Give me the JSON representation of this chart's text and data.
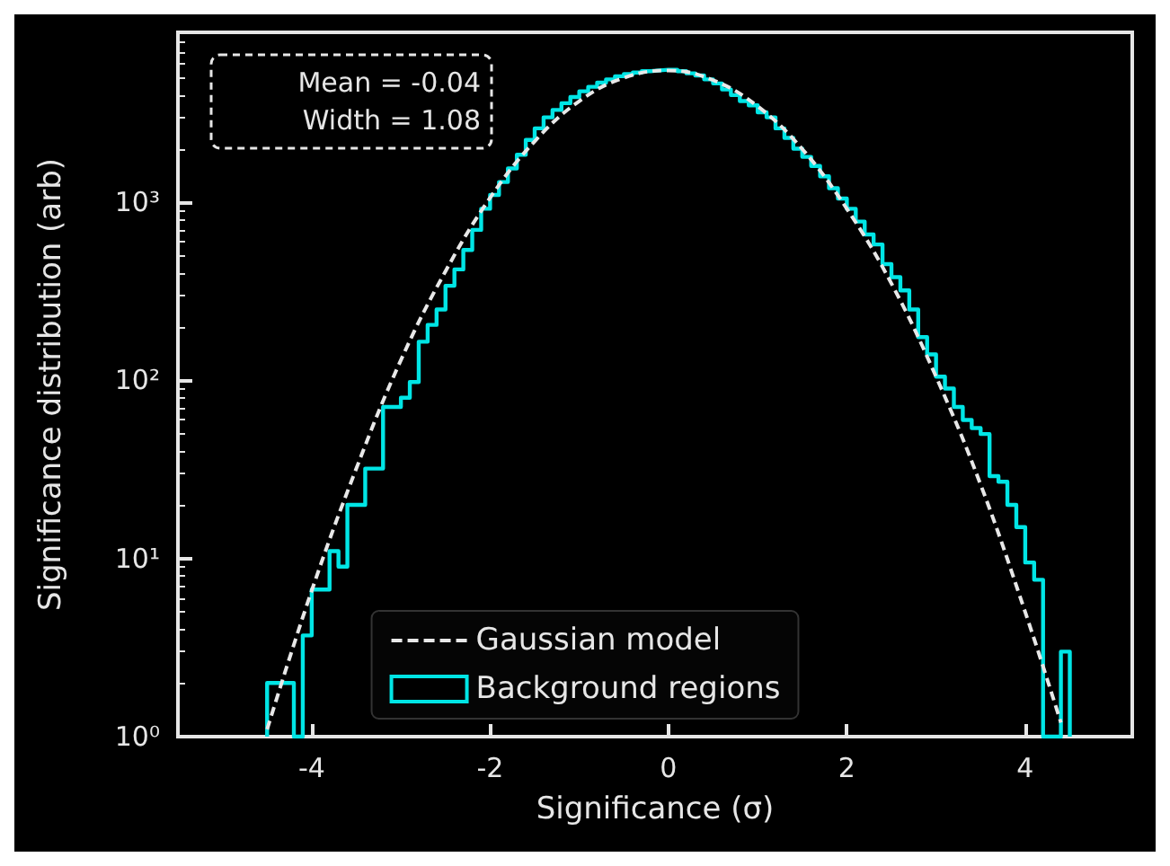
{
  "chart_data": {
    "type": "histogram",
    "xlabel": "Significance (σ)",
    "ylabel": "Significance distribution (arb)",
    "annotations": [
      "Mean = -0.04\nWidth = 1.08"
    ],
    "xlim": [
      -5.5,
      5.2
    ],
    "xticks": [
      -4,
      -2,
      0,
      2,
      4
    ],
    "ylim": [
      1,
      9000
    ],
    "yticks": [
      {
        "value": 1,
        "label": "10⁰"
      },
      {
        "value": 10,
        "label": "10¹"
      },
      {
        "value": 100,
        "label": "10²"
      },
      {
        "value": 1000,
        "label": "10³"
      }
    ],
    "log": "y",
    "legend": "bottom",
    "grid": false,
    "bins": [
      -4.5,
      -4.4,
      -4.3,
      -4.2,
      -4.1,
      -4.0,
      -3.9,
      -3.8,
      -3.7,
      -3.6,
      -3.5,
      -3.4,
      -3.3,
      -3.2,
      -3.1,
      -3.0,
      -2.9,
      -2.8,
      -2.7,
      -2.6,
      -2.5,
      -2.4,
      -2.3,
      -2.2,
      -2.1,
      -2.0,
      -1.9,
      -1.8,
      -1.7,
      -1.6,
      -1.5,
      -1.4,
      -1.3,
      -1.2,
      -1.1,
      -1.0,
      -0.9,
      -0.8,
      -0.7,
      -0.6,
      -0.5,
      -0.4,
      -0.3,
      -0.2,
      -0.1,
      0.0,
      0.1,
      0.2,
      0.3,
      0.4,
      0.5,
      0.6,
      0.7,
      0.8,
      0.9,
      1.0,
      1.1,
      1.2,
      1.3,
      1.4,
      1.5,
      1.6,
      1.7,
      1.8,
      1.9,
      2.0,
      2.1,
      2.2,
      2.3,
      2.4,
      2.5,
      2.6,
      2.7,
      2.8,
      2.9,
      3.0,
      3.1,
      3.2,
      3.3,
      3.4,
      3.5,
      3.6,
      3.7,
      3.8,
      3.9,
      4.0,
      4.1,
      4.2,
      4.3,
      4.4,
      4.5
    ],
    "series": [
      {
        "name": "Background regions",
        "color": "#00e5e5",
        "values": [
          2,
          2,
          2,
          null,
          3.7,
          6.7,
          6.7,
          11,
          9,
          20,
          20,
          32,
          32,
          71,
          71,
          80,
          98,
          165,
          205,
          250,
          340,
          420,
          540,
          700,
          920,
          1100,
          1300,
          1550,
          1850,
          2240,
          2600,
          3000,
          3300,
          3600,
          3900,
          4200,
          4450,
          4700,
          4900,
          5100,
          5250,
          5350,
          5450,
          5500,
          5550,
          5550,
          5450,
          5300,
          5150,
          4900,
          4650,
          4300,
          4000,
          3700,
          3500,
          3200,
          3000,
          2600,
          2300,
          2000,
          1800,
          1600,
          1400,
          1200,
          1050,
          920,
          780,
          660,
          580,
          450,
          380,
          320,
          250,
          175,
          140,
          105,
          90,
          71,
          60,
          54,
          50,
          29,
          27,
          20,
          15,
          9.5,
          7.6,
          null,
          null,
          3
        ]
      },
      {
        "type": "line",
        "name": "Gaussian model",
        "color": "#e8e8e8",
        "line_style": "dashed",
        "marker": "none",
        "x": [
          -4.5,
          -4.0,
          -3.5,
          -3.0,
          -2.5,
          -2.0,
          -1.5,
          -1.0,
          -0.5,
          0,
          0.5,
          1.0,
          1.5,
          2.0,
          2.5,
          3.0,
          3.5,
          4.0,
          4.4
        ],
        "values": [
          1.1,
          6.6,
          32,
          130,
          410,
          1060,
          2200,
          3700,
          5000,
          5500,
          4850,
          3460,
          1990,
          920,
          350,
          105,
          26,
          5,
          1.2
        ]
      }
    ]
  }
}
